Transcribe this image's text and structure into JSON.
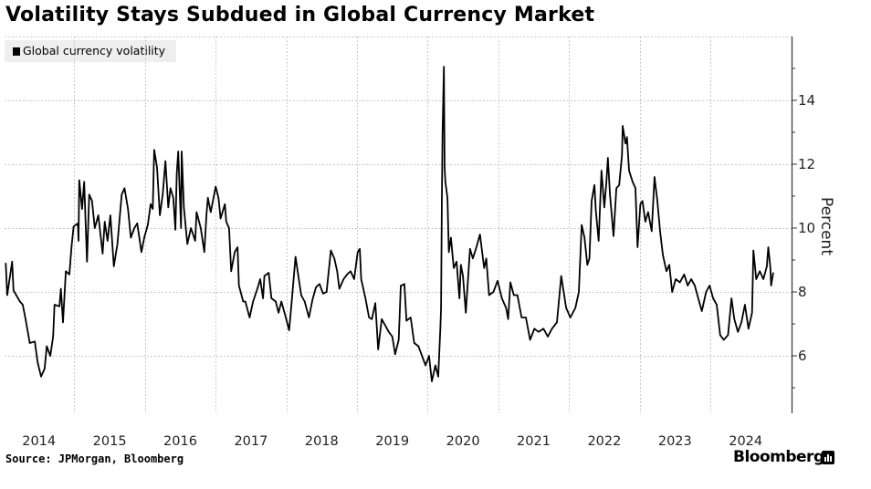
{
  "chart_data": {
    "type": "line",
    "title": "Volatility Stays Subdued in Global Currency Market",
    "ylabel": "Percent",
    "xlabel": "",
    "ylim": [
      4.2,
      16
    ],
    "xlim": [
      2014.0,
      2024.95
    ],
    "y_ticks": [
      6,
      8,
      10,
      12,
      14
    ],
    "y_minor_ticks": [
      5,
      7,
      9,
      11,
      13,
      15
    ],
    "x_ticks": [
      "2014",
      "2015",
      "2016",
      "2017",
      "2018",
      "2019",
      "2020",
      "2021",
      "2022",
      "2023",
      "2024"
    ],
    "grid": true,
    "legend": {
      "position": "top-left",
      "entries": [
        "Global currency volatility"
      ]
    },
    "series": [
      {
        "name": "Global currency volatility",
        "color": "#000000",
        "points": [
          [
            2014.03,
            8.9
          ],
          [
            2014.05,
            7.9
          ],
          [
            2014.12,
            8.95
          ],
          [
            2014.14,
            8.05
          ],
          [
            2014.23,
            7.7
          ],
          [
            2014.27,
            7.6
          ],
          [
            2014.31,
            7.15
          ],
          [
            2014.37,
            6.4
          ],
          [
            2014.44,
            6.45
          ],
          [
            2014.48,
            5.8
          ],
          [
            2014.53,
            5.35
          ],
          [
            2014.58,
            5.6
          ],
          [
            2014.61,
            6.3
          ],
          [
            2014.66,
            6.0
          ],
          [
            2014.7,
            6.6
          ],
          [
            2014.72,
            7.6
          ],
          [
            2014.79,
            7.55
          ],
          [
            2014.81,
            8.1
          ],
          [
            2014.84,
            7.05
          ],
          [
            2014.88,
            8.65
          ],
          [
            2014.93,
            8.55
          ],
          [
            2014.96,
            9.4
          ],
          [
            2014.99,
            10.05
          ],
          [
            2015.05,
            10.15
          ],
          [
            2015.06,
            9.6
          ],
          [
            2015.07,
            11.5
          ],
          [
            2015.11,
            10.6
          ],
          [
            2015.14,
            11.45
          ],
          [
            2015.18,
            8.95
          ],
          [
            2015.21,
            11.05
          ],
          [
            2015.25,
            10.85
          ],
          [
            2015.29,
            10.0
          ],
          [
            2015.34,
            10.4
          ],
          [
            2015.4,
            9.2
          ],
          [
            2015.43,
            10.2
          ],
          [
            2015.47,
            9.6
          ],
          [
            2015.51,
            10.4
          ],
          [
            2015.56,
            8.8
          ],
          [
            2015.61,
            9.5
          ],
          [
            2015.67,
            11.05
          ],
          [
            2015.71,
            11.25
          ],
          [
            2015.76,
            10.6
          ],
          [
            2015.8,
            9.7
          ],
          [
            2015.85,
            10.0
          ],
          [
            2015.89,
            10.15
          ],
          [
            2015.95,
            9.25
          ],
          [
            2015.99,
            9.7
          ],
          [
            2016.04,
            10.1
          ],
          [
            2016.08,
            10.75
          ],
          [
            2016.11,
            10.6
          ],
          [
            2016.13,
            12.45
          ],
          [
            2016.17,
            11.9
          ],
          [
            2016.21,
            10.4
          ],
          [
            2016.25,
            11.05
          ],
          [
            2016.29,
            12.1
          ],
          [
            2016.33,
            10.65
          ],
          [
            2016.36,
            11.25
          ],
          [
            2016.4,
            10.95
          ],
          [
            2016.43,
            9.95
          ],
          [
            2016.45,
            11.7
          ],
          [
            2016.47,
            12.4
          ],
          [
            2016.51,
            10.0
          ],
          [
            2016.52,
            12.4
          ],
          [
            2016.55,
            10.65
          ],
          [
            2016.6,
            9.5
          ],
          [
            2016.65,
            10.0
          ],
          [
            2016.71,
            9.6
          ],
          [
            2016.73,
            10.5
          ],
          [
            2016.79,
            10.0
          ],
          [
            2016.84,
            9.25
          ],
          [
            2016.87,
            10.4
          ],
          [
            2016.89,
            10.95
          ],
          [
            2016.93,
            10.5
          ],
          [
            2016.97,
            10.95
          ],
          [
            2017.0,
            11.3
          ],
          [
            2017.04,
            10.95
          ],
          [
            2017.07,
            10.3
          ],
          [
            2017.13,
            10.75
          ],
          [
            2017.15,
            10.2
          ],
          [
            2017.19,
            10.0
          ],
          [
            2017.22,
            8.65
          ],
          [
            2017.27,
            9.25
          ],
          [
            2017.31,
            9.4
          ],
          [
            2017.33,
            8.2
          ],
          [
            2017.39,
            7.7
          ],
          [
            2017.42,
            7.7
          ],
          [
            2017.48,
            7.2
          ],
          [
            2017.53,
            7.7
          ],
          [
            2017.59,
            8.1
          ],
          [
            2017.63,
            8.4
          ],
          [
            2017.67,
            7.8
          ],
          [
            2017.69,
            8.5
          ],
          [
            2017.75,
            8.6
          ],
          [
            2017.79,
            7.8
          ],
          [
            2017.85,
            7.7
          ],
          [
            2017.89,
            7.35
          ],
          [
            2017.93,
            7.7
          ],
          [
            2017.98,
            7.3
          ],
          [
            2018.04,
            6.8
          ],
          [
            2018.08,
            7.8
          ],
          [
            2018.13,
            9.1
          ],
          [
            2018.17,
            8.5
          ],
          [
            2018.21,
            7.9
          ],
          [
            2018.26,
            7.7
          ],
          [
            2018.32,
            7.2
          ],
          [
            2018.37,
            7.75
          ],
          [
            2018.42,
            8.15
          ],
          [
            2018.47,
            8.25
          ],
          [
            2018.52,
            7.95
          ],
          [
            2018.57,
            8.0
          ],
          [
            2018.63,
            9.3
          ],
          [
            2018.68,
            9.05
          ],
          [
            2018.72,
            8.65
          ],
          [
            2018.75,
            8.1
          ],
          [
            2018.81,
            8.4
          ],
          [
            2018.86,
            8.55
          ],
          [
            2018.91,
            8.65
          ],
          [
            2018.96,
            8.4
          ],
          [
            2019.01,
            9.25
          ],
          [
            2019.04,
            9.35
          ],
          [
            2019.06,
            8.4
          ],
          [
            2019.12,
            7.8
          ],
          [
            2019.17,
            7.2
          ],
          [
            2019.21,
            7.15
          ],
          [
            2019.26,
            7.65
          ],
          [
            2019.3,
            6.2
          ],
          [
            2019.35,
            7.15
          ],
          [
            2019.4,
            6.95
          ],
          [
            2019.45,
            6.75
          ],
          [
            2019.5,
            6.6
          ],
          [
            2019.54,
            6.05
          ],
          [
            2019.59,
            6.5
          ],
          [
            2019.62,
            8.2
          ],
          [
            2019.63,
            8.2
          ],
          [
            2019.67,
            8.25
          ],
          [
            2019.7,
            7.1
          ],
          [
            2019.76,
            7.2
          ],
          [
            2019.81,
            6.4
          ],
          [
            2019.87,
            6.3
          ],
          [
            2019.92,
            6.0
          ],
          [
            2019.97,
            5.7
          ],
          [
            2020.02,
            6.0
          ],
          [
            2020.06,
            5.2
          ],
          [
            2020.11,
            5.7
          ],
          [
            2020.15,
            5.35
          ],
          [
            2020.18,
            6.85
          ],
          [
            2020.19,
            7.5
          ],
          [
            2020.2,
            10.65
          ],
          [
            2020.21,
            12.95
          ],
          [
            2020.23,
            15.05
          ],
          [
            2020.24,
            11.9
          ],
          [
            2020.25,
            11.45
          ],
          [
            2020.28,
            10.95
          ],
          [
            2020.3,
            9.25
          ],
          [
            2020.33,
            9.7
          ],
          [
            2020.37,
            8.75
          ],
          [
            2020.41,
            8.95
          ],
          [
            2020.45,
            7.8
          ],
          [
            2020.47,
            8.85
          ],
          [
            2020.5,
            8.5
          ],
          [
            2020.54,
            7.35
          ],
          [
            2020.6,
            9.35
          ],
          [
            2020.64,
            9.05
          ],
          [
            2020.69,
            9.4
          ],
          [
            2020.74,
            9.8
          ],
          [
            2020.8,
            8.75
          ],
          [
            2020.83,
            9.05
          ],
          [
            2020.87,
            7.9
          ],
          [
            2020.93,
            8.0
          ],
          [
            2020.99,
            8.35
          ],
          [
            2021.05,
            7.8
          ],
          [
            2021.11,
            7.5
          ],
          [
            2021.14,
            7.15
          ],
          [
            2021.17,
            8.3
          ],
          [
            2021.22,
            7.9
          ],
          [
            2021.27,
            7.9
          ],
          [
            2021.33,
            7.2
          ],
          [
            2021.39,
            7.2
          ],
          [
            2021.45,
            6.5
          ],
          [
            2021.51,
            6.85
          ],
          [
            2021.57,
            6.75
          ],
          [
            2021.64,
            6.85
          ],
          [
            2021.7,
            6.6
          ],
          [
            2021.76,
            6.85
          ],
          [
            2021.83,
            7.05
          ],
          [
            2021.89,
            8.5
          ],
          [
            2021.96,
            7.5
          ],
          [
            2022.02,
            7.2
          ],
          [
            2022.09,
            7.5
          ],
          [
            2022.14,
            8.0
          ],
          [
            2022.18,
            10.1
          ],
          [
            2022.22,
            9.7
          ],
          [
            2022.26,
            8.85
          ],
          [
            2022.29,
            9.05
          ],
          [
            2022.32,
            10.85
          ],
          [
            2022.36,
            11.35
          ],
          [
            2022.38,
            10.55
          ],
          [
            2022.42,
            9.6
          ],
          [
            2022.46,
            11.8
          ],
          [
            2022.5,
            10.65
          ],
          [
            2022.53,
            11.45
          ],
          [
            2022.55,
            12.2
          ],
          [
            2022.58,
            11.05
          ],
          [
            2022.63,
            9.75
          ],
          [
            2022.67,
            11.25
          ],
          [
            2022.71,
            11.35
          ],
          [
            2022.75,
            12.3
          ],
          [
            2022.76,
            13.2
          ],
          [
            2022.8,
            12.65
          ],
          [
            2022.82,
            12.85
          ],
          [
            2022.85,
            11.8
          ],
          [
            2022.9,
            11.45
          ],
          [
            2022.94,
            11.25
          ],
          [
            2022.97,
            9.4
          ],
          [
            2023.01,
            10.75
          ],
          [
            2023.04,
            10.85
          ],
          [
            2023.08,
            10.2
          ],
          [
            2023.12,
            10.5
          ],
          [
            2023.17,
            9.9
          ],
          [
            2023.21,
            11.6
          ],
          [
            2023.25,
            10.85
          ],
          [
            2023.29,
            9.9
          ],
          [
            2023.33,
            9.15
          ],
          [
            2023.38,
            8.65
          ],
          [
            2023.42,
            8.85
          ],
          [
            2023.46,
            8.0
          ],
          [
            2023.51,
            8.4
          ],
          [
            2023.57,
            8.3
          ],
          [
            2023.63,
            8.55
          ],
          [
            2023.68,
            8.2
          ],
          [
            2023.73,
            8.4
          ],
          [
            2023.78,
            8.2
          ],
          [
            2023.83,
            7.8
          ],
          [
            2023.88,
            7.4
          ],
          [
            2023.94,
            8.0
          ],
          [
            2023.99,
            8.2
          ],
          [
            2024.04,
            7.8
          ],
          [
            2024.09,
            7.6
          ],
          [
            2024.14,
            6.65
          ],
          [
            2024.19,
            6.5
          ],
          [
            2024.25,
            6.65
          ],
          [
            2024.3,
            7.8
          ],
          [
            2024.34,
            7.15
          ],
          [
            2024.39,
            6.75
          ],
          [
            2024.44,
            7.05
          ],
          [
            2024.49,
            7.6
          ],
          [
            2024.54,
            6.85
          ],
          [
            2024.59,
            7.35
          ],
          [
            2024.61,
            9.3
          ],
          [
            2024.65,
            8.4
          ],
          [
            2024.7,
            8.65
          ],
          [
            2024.75,
            8.4
          ],
          [
            2024.8,
            8.8
          ],
          [
            2024.82,
            9.4
          ],
          [
            2024.85,
            8.75
          ],
          [
            2024.86,
            8.2
          ],
          [
            2024.89,
            8.6
          ]
        ]
      }
    ],
    "source": "Source: JPMorgan, Bloomberg",
    "brand": "Bloomberg"
  }
}
